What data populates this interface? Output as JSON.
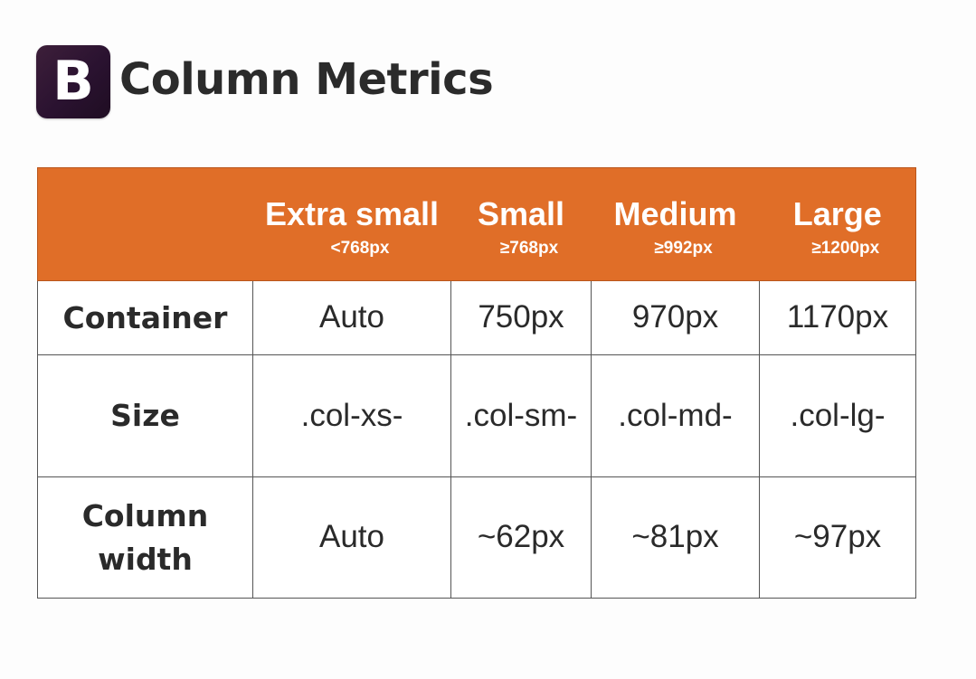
{
  "header": {
    "logo_letter": "B",
    "title": "Column Metrics"
  },
  "table": {
    "columns": [
      {
        "label": "",
        "sub": ""
      },
      {
        "label": "Extra small",
        "sub": "<768px"
      },
      {
        "label": "Small",
        "sub": "≥768px"
      },
      {
        "label": "Medium",
        "sub": "≥992px"
      },
      {
        "label": "Large",
        "sub": "≥1200px"
      }
    ],
    "rows": [
      {
        "label": "Container",
        "cells": [
          "Auto",
          "750px",
          "970px",
          "1170px"
        ]
      },
      {
        "label": "Size",
        "cells": [
          ".col-xs-",
          ".col-sm-",
          ".col-md-",
          ".col-lg-"
        ]
      },
      {
        "label": "Column width",
        "cells": [
          "Auto",
          "~62px",
          "~81px",
          "~97px"
        ]
      }
    ]
  },
  "colors": {
    "header_bg": "#e06e28",
    "logo_bg": "#2a1230"
  }
}
